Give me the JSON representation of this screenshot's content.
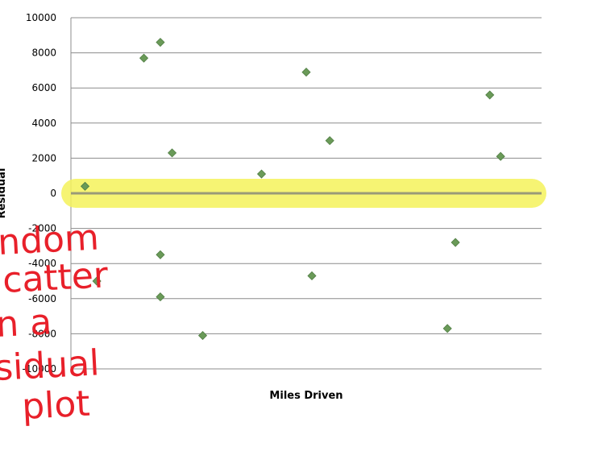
{
  "chart_data": {
    "type": "scatter",
    "title": "",
    "xlabel": "Miles Driven",
    "ylabel": "Residual",
    "ylim": [
      -10000,
      10000
    ],
    "yticks": [
      "10000",
      "8000",
      "6000",
      "4000",
      "2000",
      "0",
      "-2000",
      "-4000",
      "-6000",
      "-8000",
      "-10000"
    ],
    "grid": true,
    "marker": "diamond",
    "colors": {
      "point": "#6a9a58",
      "point_edge": "#4f7d43",
      "grid": "#8c8c8c",
      "zero_line": "#9a9a78",
      "highlight": "#f4f25a",
      "annotation": "#e8202a"
    },
    "points": [
      {
        "x": 0.03,
        "y": 400
      },
      {
        "x": 0.055,
        "y": -5000
      },
      {
        "x": 0.155,
        "y": 7700
      },
      {
        "x": 0.19,
        "y": 8600
      },
      {
        "x": 0.215,
        "y": 2300
      },
      {
        "x": 0.19,
        "y": -3500
      },
      {
        "x": 0.19,
        "y": -5900
      },
      {
        "x": 0.28,
        "y": -8100
      },
      {
        "x": 0.405,
        "y": 1100
      },
      {
        "x": 0.5,
        "y": 6900
      },
      {
        "x": 0.55,
        "y": 3000
      },
      {
        "x": 0.512,
        "y": -4700
      },
      {
        "x": 0.817,
        "y": -2800
      },
      {
        "x": 0.8,
        "y": -7700
      },
      {
        "x": 0.89,
        "y": 5600
      },
      {
        "x": 0.913,
        "y": 2100
      }
    ],
    "annotation_lines": [
      "ndom",
      "catter",
      "n a",
      "sidual",
      "plot"
    ]
  }
}
